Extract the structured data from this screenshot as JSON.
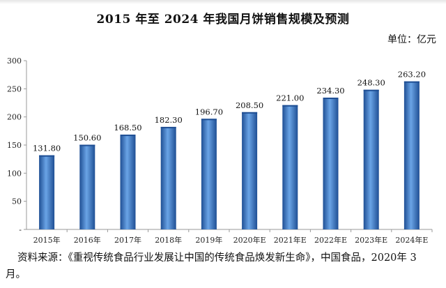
{
  "chart_data": {
    "type": "bar",
    "title": "2015 年至 2024 年我国月饼销售规模及预测",
    "unit_label": "单位：亿元",
    "categories": [
      "2015年",
      "2016年",
      "2017年",
      "2018年",
      "2019年",
      "2020年E",
      "2021年E",
      "2022年E",
      "2023年E",
      "2024年E"
    ],
    "values": [
      131.8,
      150.6,
      168.5,
      182.3,
      196.7,
      208.5,
      221.0,
      234.3,
      248.3,
      263.2
    ],
    "value_labels": [
      "131.80",
      "150.60",
      "168.50",
      "182.30",
      "196.70",
      "208.50",
      "221.00",
      "234.30",
      "248.30",
      "263.20"
    ],
    "ylim": [
      0,
      300
    ],
    "yticks": [
      0,
      50,
      100,
      150,
      200,
      250,
      300
    ],
    "ytick_labels": [
      "-",
      "50",
      "100",
      "150",
      "200",
      "250",
      "300"
    ],
    "grid": false,
    "bar_color": "#3d7cc9",
    "bar_color_dark": "#1f4f94"
  },
  "source_note": "资料来源：《重视传统食品行业发展让中国的传统食品焕发新生命》，中国食品，2020年 3 月。"
}
